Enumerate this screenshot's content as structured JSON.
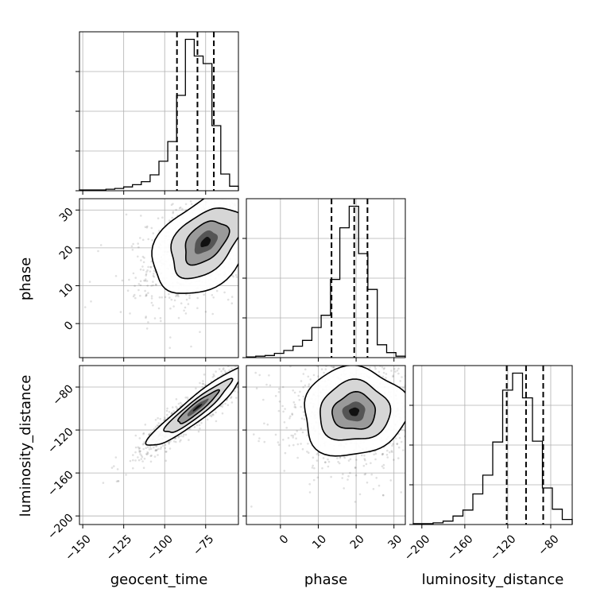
{
  "chart_data": {
    "type": "corner",
    "parameters": [
      "geocent_time",
      "phase",
      "luminosity_distance"
    ],
    "grid": true,
    "ranges": {
      "geocent_time": [
        -152,
        -55
      ],
      "phase": [
        -9,
        33
      ],
      "luminosity_distance": [
        -208,
        -60
      ]
    },
    "ticks": {
      "geocent_time": {
        "values": [
          -150,
          -125,
          -100,
          -75
        ],
        "labels": [
          "−150",
          "−125",
          "−100",
          "−75"
        ]
      },
      "phase": {
        "values": [
          0,
          10,
          20,
          30
        ],
        "labels": [
          "0",
          "10",
          "20",
          "30"
        ]
      },
      "luminosity_distance": {
        "values": [
          -200,
          -160,
          -120,
          -80
        ],
        "labels": [
          "−200",
          "−160",
          "−120",
          "−80"
        ]
      }
    },
    "quantiles": {
      "geocent_time": [
        -92.5,
        -80,
        -70
      ],
      "phase": [
        13.5,
        19.5,
        23
      ],
      "luminosity_distance": [
        -121,
        -103,
        -87
      ]
    },
    "histograms": {
      "geocent_time": [
        1,
        1,
        1,
        2,
        3,
        5,
        8,
        12,
        21,
        39,
        65,
        126,
        200,
        178,
        168,
        86,
        22,
        6
      ],
      "phase": [
        1,
        2,
        3,
        6,
        10,
        16,
        24,
        42,
        59,
        109,
        181,
        211,
        145,
        95,
        18,
        7,
        2
      ],
      "luminosity_distance": [
        1,
        1,
        2,
        4,
        10,
        17,
        36,
        58,
        97,
        158,
        178,
        149,
        98,
        43,
        18,
        6
      ]
    },
    "density_2d": [
      {
        "x": "geocent_time",
        "y": "phase",
        "center": [
          -75,
          21.5
        ],
        "sigma": [
          14,
          6
        ],
        "rho": 0.45
      },
      {
        "x": "geocent_time",
        "y": "luminosity_distance",
        "center": [
          -80,
          -99
        ],
        "sigma": [
          13,
          16
        ],
        "rho": 0.93
      },
      {
        "x": "phase",
        "y": "luminosity_distance",
        "center": [
          19.5,
          -103
        ],
        "sigma": [
          6,
          18
        ],
        "rho": 0.05
      }
    ]
  }
}
